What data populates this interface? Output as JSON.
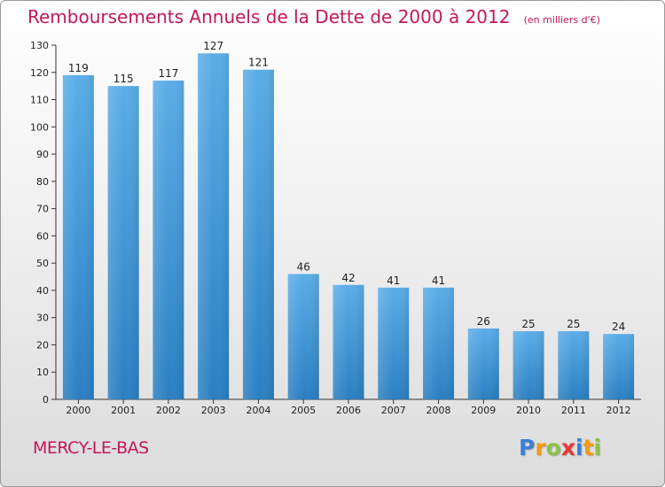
{
  "title": "Remboursements Annuels de la Dette de 2000 à 2012",
  "subtitle": "(en milliers d'€)",
  "place_name": "MERCY-LE-BAS",
  "logo": {
    "text": "Proxiti",
    "letters": [
      {
        "ch": "P",
        "color": "#3a7fd5"
      },
      {
        "ch": "r",
        "color": "#f39c12"
      },
      {
        "ch": "o",
        "color": "#8bc34a"
      },
      {
        "ch": "x",
        "color": "#e53935"
      },
      {
        "ch": "i",
        "color": "#3a7fd5"
      },
      {
        "ch": "t",
        "color": "#f39c12"
      },
      {
        "ch": "i",
        "color": "#8bc34a"
      }
    ]
  },
  "colors": {
    "bar_top": "#5aade8",
    "bar_bottom": "#2a7fc2",
    "title": "#c2185b"
  },
  "chart_data": {
    "type": "bar",
    "title": "Remboursements Annuels de la Dette de 2000 à 2012",
    "subtitle": "(en milliers d'€)",
    "categories": [
      "2000",
      "2001",
      "2002",
      "2003",
      "2004",
      "2005",
      "2006",
      "2007",
      "2008",
      "2009",
      "2010",
      "2011",
      "2012"
    ],
    "values": [
      119,
      115,
      117,
      127,
      121,
      46,
      42,
      41,
      41,
      26,
      25,
      25,
      24
    ],
    "ylim": [
      0,
      130
    ],
    "yticks": [
      0,
      10,
      20,
      30,
      40,
      50,
      60,
      70,
      80,
      90,
      100,
      110,
      120,
      130
    ],
    "grid": false,
    "data_labels": true
  }
}
